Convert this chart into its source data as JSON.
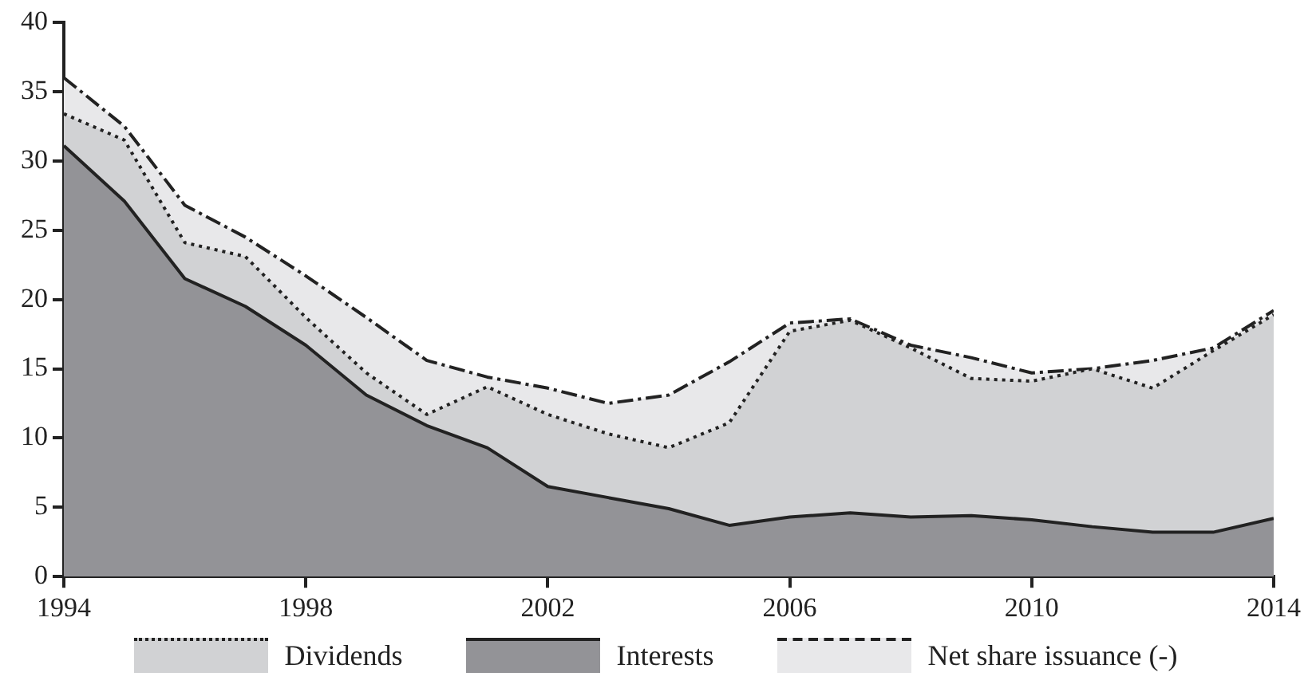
{
  "chart_data": {
    "type": "area",
    "stacked": true,
    "x": [
      1994,
      1995,
      1996,
      1997,
      1998,
      1999,
      2000,
      2001,
      2002,
      2003,
      2004,
      2005,
      2006,
      2007,
      2008,
      2009,
      2010,
      2011,
      2012,
      2013,
      2014
    ],
    "xlim": [
      1994,
      2014
    ],
    "xticks": [
      1994,
      1998,
      2002,
      2006,
      2010,
      2014
    ],
    "ylim": [
      0,
      40
    ],
    "yticks": [
      0,
      5,
      10,
      15,
      20,
      25,
      30,
      35,
      40
    ],
    "grid": false,
    "legend": "bottom",
    "series": [
      {
        "name": "Interests",
        "color": "#939397",
        "line_style": "solid",
        "values": [
          31.1,
          27.1,
          21.5,
          19.5,
          16.7,
          13.1,
          10.9,
          9.3,
          6.5,
          5.7,
          4.9,
          3.7,
          4.3,
          4.6,
          4.3,
          4.4,
          4.1,
          3.6,
          3.2,
          3.2,
          4.2
        ]
      },
      {
        "name": "Dividends",
        "color": "#d1d2d4",
        "line_style": "dotted",
        "values": [
          2.3,
          4.4,
          2.6,
          3.6,
          2.0,
          1.6,
          0.8,
          4.4,
          5.2,
          4.6,
          4.4,
          7.4,
          13.4,
          13.9,
          12.2,
          9.9,
          10.0,
          11.4,
          10.4,
          13.1,
          14.7
        ]
      },
      {
        "name": "Net share issuance (-)",
        "color": "#e8e8ea",
        "line_style": "dashed",
        "values": [
          2.6,
          1.0,
          2.7,
          1.4,
          3.0,
          4.0,
          3.9,
          0.7,
          1.9,
          2.2,
          3.8,
          4.4,
          0.6,
          0.1,
          0.2,
          1.5,
          0.6,
          0.0,
          2.0,
          0.2,
          0.3
        ]
      }
    ]
  }
}
